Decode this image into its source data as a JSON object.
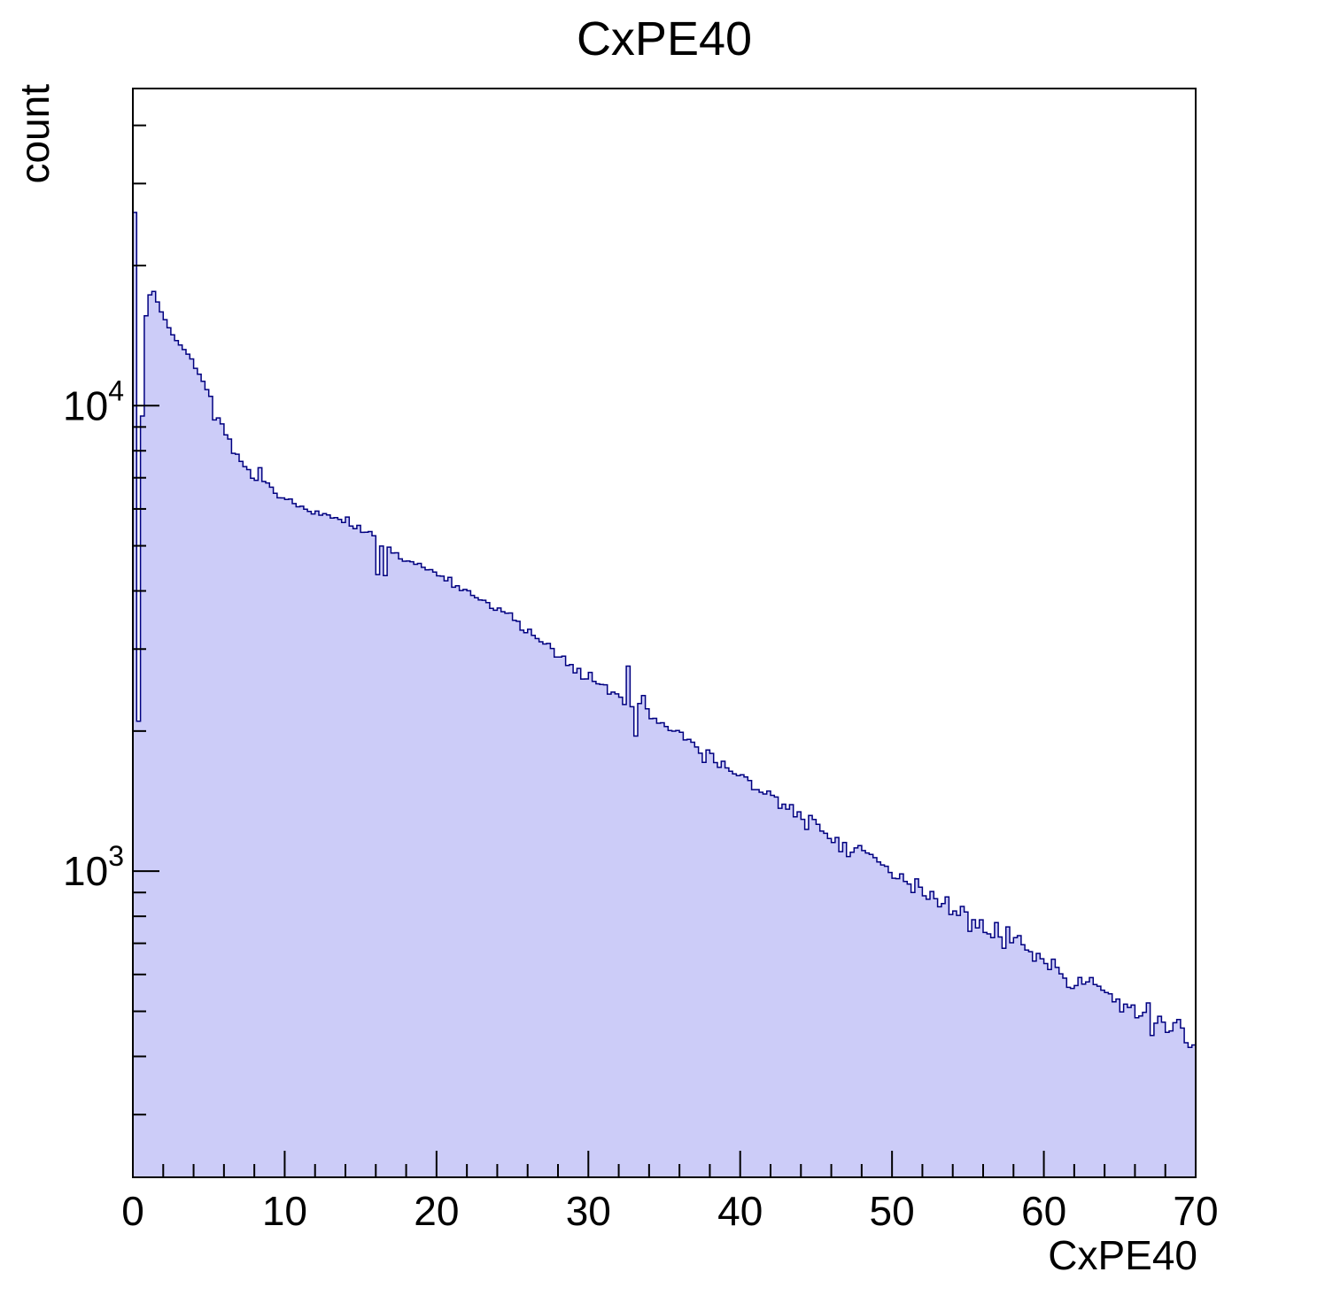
{
  "title": "CxPE40",
  "chart_data": {
    "type": "area",
    "style": "filled-step-histogram",
    "title": "CxPE40",
    "xlabel": "CxPE40",
    "ylabel": "count",
    "x_range": [
      0,
      70
    ],
    "y_range": [
      220,
      48000
    ],
    "y_scale": "log10",
    "grid": false,
    "legend": "none",
    "bin_width": 0.25,
    "x_major_ticks": [
      0,
      10,
      20,
      30,
      40,
      50,
      60,
      70
    ],
    "x_minor_step": 2,
    "y_major_ticks": [
      1000,
      10000
    ],
    "y_tick_labels": [
      {
        "value": 1000,
        "mantissa": "10",
        "exponent": "3"
      },
      {
        "value": 10000,
        "mantissa": "10",
        "exponent": "4"
      }
    ],
    "lead_bins": [
      26000,
      2100,
      9500,
      15600,
      17300,
      17600,
      16700,
      15900,
      15300,
      14700,
      14200,
      13800,
      13500,
      13200,
      12900,
      12600
    ],
    "anchors": [
      {
        "x": 4,
        "y": 12300
      },
      {
        "x": 5,
        "y": 10700
      },
      {
        "x": 6,
        "y": 8800
      },
      {
        "x": 7,
        "y": 7700
      },
      {
        "x": 8,
        "y": 6900
      },
      {
        "x": 9,
        "y": 6700
      },
      {
        "x": 10,
        "y": 6310
      },
      {
        "x": 12,
        "y": 5900
      },
      {
        "x": 14,
        "y": 5650
      },
      {
        "x": 16,
        "y": 5180
      },
      {
        "x": 18,
        "y": 4640
      },
      {
        "x": 20,
        "y": 4350
      },
      {
        "x": 22,
        "y": 3980
      },
      {
        "x": 24,
        "y": 3650
      },
      {
        "x": 26,
        "y": 3270
      },
      {
        "x": 28,
        "y": 2930
      },
      {
        "x": 30,
        "y": 2625
      },
      {
        "x": 32,
        "y": 2400
      },
      {
        "x": 34,
        "y": 2150
      },
      {
        "x": 36,
        "y": 1970
      },
      {
        "x": 38,
        "y": 1770
      },
      {
        "x": 40,
        "y": 1585
      },
      {
        "x": 42,
        "y": 1450
      },
      {
        "x": 44,
        "y": 1330
      },
      {
        "x": 46,
        "y": 1190
      },
      {
        "x": 48,
        "y": 1090
      },
      {
        "x": 50,
        "y": 1000
      },
      {
        "x": 52,
        "y": 915
      },
      {
        "x": 54,
        "y": 840
      },
      {
        "x": 56,
        "y": 770
      },
      {
        "x": 58,
        "y": 705
      },
      {
        "x": 60,
        "y": 645
      },
      {
        "x": 62,
        "y": 591
      },
      {
        "x": 64,
        "y": 541
      },
      {
        "x": 66,
        "y": 507
      },
      {
        "x": 68,
        "y": 474
      },
      {
        "x": 70,
        "y": 445
      }
    ],
    "fluctuations": [
      {
        "x": 5.3,
        "factor": 0.93
      },
      {
        "x": 8.3,
        "factor": 1.06
      },
      {
        "x": 16.0,
        "factor": 0.84
      },
      {
        "x": 16.5,
        "factor": 0.88
      },
      {
        "x": 32.5,
        "factor": 1.15
      },
      {
        "x": 33.0,
        "factor": 0.85
      },
      {
        "x": 33.5,
        "factor": 1.1
      }
    ],
    "colors": {
      "fill": "#ccccf8",
      "line": "#000080",
      "frame": "#000000",
      "background": "#ffffff"
    }
  }
}
